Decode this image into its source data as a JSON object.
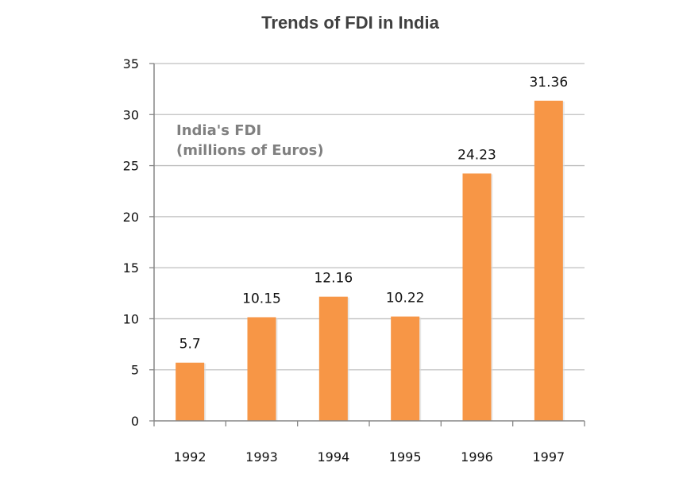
{
  "chart_data": {
    "type": "bar",
    "title": "Trends of FDI in India",
    "categories": [
      "1992",
      "1993",
      "1994",
      "1995",
      "1996",
      "1997"
    ],
    "series": [
      {
        "name_line1": "India's FDI",
        "name_line2": "(millions of Euros)",
        "values": [
          5.7,
          10.15,
          12.16,
          10.22,
          24.23,
          31.36
        ],
        "labels": [
          "5.7",
          "10.15",
          "12.16",
          "10.22",
          "24.23",
          "31.36"
        ],
        "color": "#F79646"
      }
    ],
    "ylim": [
      0,
      35
    ],
    "yticks": [
      "0",
      "5",
      "10",
      "15",
      "20",
      "25",
      "30",
      "35"
    ],
    "grid": true,
    "gridline_color": "#BFBFBF",
    "axis_color": "#868686",
    "series_label_color": "#808080"
  }
}
